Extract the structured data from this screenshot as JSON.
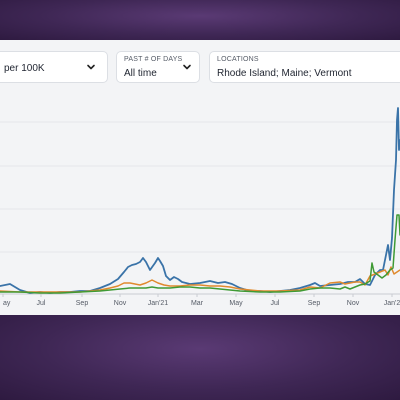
{
  "filters": {
    "metric": {
      "value": "per 100K"
    },
    "days": {
      "label": "PAST # OF DAYS",
      "value": "All time"
    },
    "locations": {
      "label": "LOCATIONS",
      "value": "Rhode Island; Maine; Vermont"
    }
  },
  "chart_data": {
    "type": "line",
    "x_ticks": [
      "ay",
      "Jul",
      "Sep",
      "Nov",
      "Jan'21",
      "Mar",
      "May",
      "Jul",
      "Sep",
      "Nov",
      "Jan'2"
    ],
    "grid": true,
    "series": [
      {
        "color": "#3a73a8",
        "points": [
          [
            0,
            286
          ],
          [
            10,
            284
          ],
          [
            20,
            290
          ],
          [
            30,
            293
          ],
          [
            40,
            292
          ],
          [
            50,
            293
          ],
          [
            60,
            292
          ],
          [
            70,
            292
          ],
          [
            80,
            291
          ],
          [
            90,
            291
          ],
          [
            100,
            288
          ],
          [
            110,
            284
          ],
          [
            118,
            279
          ],
          [
            124,
            272
          ],
          [
            128,
            267
          ],
          [
            132,
            265
          ],
          [
            136,
            264
          ],
          [
            140,
            262
          ],
          [
            143,
            258
          ],
          [
            146,
            262
          ],
          [
            150,
            270
          ],
          [
            155,
            263
          ],
          [
            158,
            258
          ],
          [
            160,
            261
          ],
          [
            163,
            266
          ],
          [
            166,
            276
          ],
          [
            170,
            280
          ],
          [
            174,
            277
          ],
          [
            178,
            279
          ],
          [
            182,
            282
          ],
          [
            190,
            284
          ],
          [
            200,
            283
          ],
          [
            210,
            281
          ],
          [
            218,
            283
          ],
          [
            225,
            282
          ],
          [
            232,
            284
          ],
          [
            240,
            288
          ],
          [
            250,
            291
          ],
          [
            260,
            291
          ],
          [
            270,
            292
          ],
          [
            280,
            291
          ],
          [
            290,
            290
          ],
          [
            300,
            288
          ],
          [
            310,
            285
          ],
          [
            315,
            283
          ],
          [
            320,
            286
          ],
          [
            330,
            285
          ],
          [
            340,
            284
          ],
          [
            348,
            282
          ],
          [
            355,
            282
          ],
          [
            360,
            279
          ],
          [
            365,
            284
          ],
          [
            370,
            285
          ],
          [
            375,
            275
          ],
          [
            380,
            270
          ],
          [
            383,
            270
          ],
          [
            386,
            255
          ],
          [
            388,
            245
          ],
          [
            390,
            260
          ],
          [
            392,
            238
          ],
          [
            394,
            190
          ],
          [
            396,
            160
          ],
          [
            397,
            120
          ],
          [
            398,
            108
          ],
          [
            399,
            150
          ],
          [
            400,
            140
          ]
        ]
      },
      {
        "color": "#e08a2e",
        "points": [
          [
            0,
            291
          ],
          [
            20,
            292
          ],
          [
            40,
            292
          ],
          [
            60,
            292
          ],
          [
            80,
            292
          ],
          [
            100,
            290
          ],
          [
            110,
            288
          ],
          [
            118,
            286
          ],
          [
            124,
            283
          ],
          [
            130,
            283
          ],
          [
            140,
            285
          ],
          [
            146,
            283
          ],
          [
            152,
            280
          ],
          [
            158,
            283
          ],
          [
            164,
            285
          ],
          [
            170,
            286
          ],
          [
            180,
            286
          ],
          [
            190,
            285
          ],
          [
            200,
            285
          ],
          [
            210,
            286
          ],
          [
            220,
            286
          ],
          [
            230,
            287
          ],
          [
            240,
            289
          ],
          [
            260,
            291
          ],
          [
            280,
            291
          ],
          [
            300,
            290
          ],
          [
            310,
            287
          ],
          [
            320,
            288
          ],
          [
            330,
            283
          ],
          [
            340,
            282
          ],
          [
            345,
            284
          ],
          [
            350,
            283
          ],
          [
            355,
            282
          ],
          [
            360,
            282
          ],
          [
            365,
            285
          ],
          [
            370,
            276
          ],
          [
            375,
            274
          ],
          [
            380,
            272
          ],
          [
            385,
            270
          ],
          [
            388,
            275
          ],
          [
            391,
            267
          ],
          [
            394,
            274
          ],
          [
            397,
            272
          ],
          [
            400,
            270
          ]
        ]
      },
      {
        "color": "#3f9a35",
        "points": [
          [
            0,
            292
          ],
          [
            20,
            292
          ],
          [
            40,
            293
          ],
          [
            60,
            293
          ],
          [
            80,
            292
          ],
          [
            100,
            291
          ],
          [
            110,
            290
          ],
          [
            120,
            289
          ],
          [
            130,
            288
          ],
          [
            140,
            288
          ],
          [
            146,
            288
          ],
          [
            152,
            287
          ],
          [
            158,
            288
          ],
          [
            164,
            288
          ],
          [
            170,
            288
          ],
          [
            180,
            287
          ],
          [
            190,
            287
          ],
          [
            200,
            288
          ],
          [
            210,
            288
          ],
          [
            220,
            289
          ],
          [
            230,
            290
          ],
          [
            240,
            291
          ],
          [
            260,
            292
          ],
          [
            280,
            292
          ],
          [
            300,
            291
          ],
          [
            310,
            289
          ],
          [
            320,
            288
          ],
          [
            330,
            288
          ],
          [
            340,
            289
          ],
          [
            345,
            287
          ],
          [
            350,
            289
          ],
          [
            355,
            287
          ],
          [
            360,
            285
          ],
          [
            365,
            284
          ],
          [
            370,
            281
          ],
          [
            372,
            263
          ],
          [
            374,
            272
          ],
          [
            378,
            275
          ],
          [
            382,
            278
          ],
          [
            386,
            275
          ],
          [
            390,
            270
          ],
          [
            393,
            268
          ],
          [
            395,
            240
          ],
          [
            397,
            215
          ],
          [
            399,
            215
          ],
          [
            400,
            235
          ]
        ]
      }
    ]
  }
}
